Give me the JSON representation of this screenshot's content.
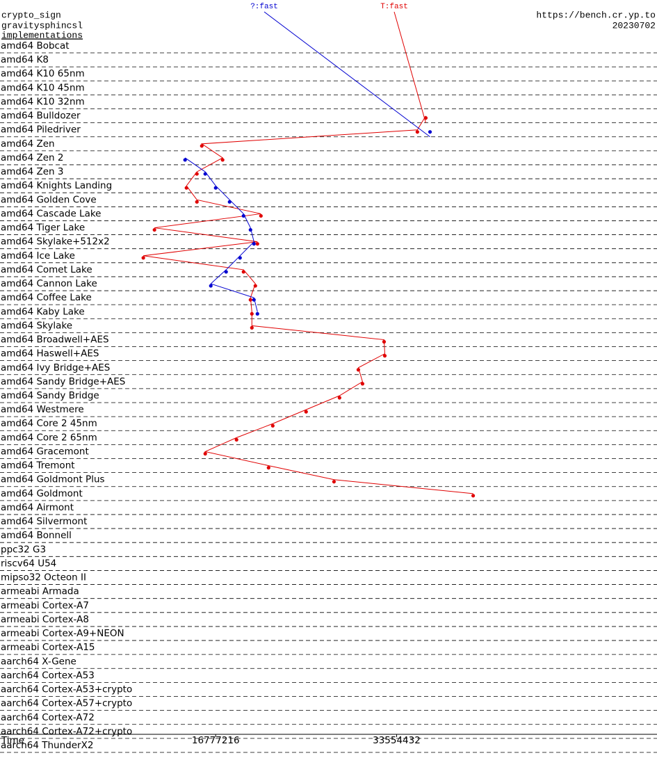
{
  "header": {
    "left": [
      "crypto_sign",
      "gravitysphincsl",
      "implementations"
    ],
    "right": [
      "https://bench.cr.yp.to",
      "20230702"
    ]
  },
  "chart_data": {
    "type": "line",
    "orientation": "horizontal",
    "x_label": "Time",
    "categories": [
      "amd64 Bobcat",
      "amd64 K8",
      "amd64 K10 65nm",
      "amd64 K10 45nm",
      "amd64 K10 32nm",
      "amd64 Bulldozer",
      "amd64 Piledriver",
      "amd64 Zen",
      "amd64 Zen 2",
      "amd64 Zen 3",
      "amd64 Knights Landing",
      "amd64 Golden Cove",
      "amd64 Cascade Lake",
      "amd64 Tiger Lake",
      "amd64 Skylake+512x2",
      "amd64 Ice Lake",
      "amd64 Comet Lake",
      "amd64 Cannon Lake",
      "amd64 Coffee Lake",
      "amd64 Kaby Lake",
      "amd64 Skylake",
      "amd64 Broadwell+AES",
      "amd64 Haswell+AES",
      "amd64 Ivy Bridge+AES",
      "amd64 Sandy Bridge+AES",
      "amd64 Sandy Bridge",
      "amd64 Westmere",
      "amd64 Core 2 45nm",
      "amd64 Core 2 65nm",
      "amd64 Gracemont",
      "amd64 Tremont",
      "amd64 Goldmont Plus",
      "amd64 Goldmont",
      "amd64 Airmont",
      "amd64 Silvermont",
      "amd64 Bonnell",
      "ppc32 G3",
      "riscv64 U54",
      "mipso32 Octeon II",
      "armeabi Armada",
      "armeabi Cortex-A7",
      "armeabi Cortex-A8",
      "armeabi Cortex-A9+NEON",
      "armeabi Cortex-A15",
      "aarch64 X-Gene",
      "aarch64 Cortex-A53",
      "aarch64 Cortex-A53+crypto",
      "aarch64 Cortex-A57+crypto",
      "aarch64 Cortex-A72",
      "aarch64 Cortex-A72+crypto",
      "aarch64 ThunderX2"
    ],
    "series": [
      {
        "name": "T:fast",
        "color": "#e00000",
        "values": [
          null,
          null,
          null,
          null,
          null,
          36260000,
          35480000,
          15490000,
          17420000,
          15035000,
          14067000,
          15035000,
          20972000,
          11099000,
          20649000,
          10066000,
          19358000,
          20455000,
          20004000,
          20133000,
          20133000,
          32393000,
          32458000,
          30006000,
          30393000,
          28260000,
          25160000,
          22070000,
          18710000,
          15809000,
          21681000,
          27747000,
          40653000,
          null,
          null,
          null,
          null,
          null,
          null,
          null,
          null,
          null,
          null,
          null,
          null,
          null,
          null,
          null,
          null,
          null,
          null
        ]
      },
      {
        "name": "?:fast",
        "color": "#0000d0",
        "values": [
          null,
          null,
          null,
          null,
          null,
          null,
          36652000,
          null,
          13938000,
          15809000,
          16777000,
          18067000,
          19358000,
          20004000,
          20326000,
          19036000,
          17745000,
          16326000,
          20326000,
          20649000,
          null,
          null,
          null,
          null,
          null,
          null,
          null,
          null,
          null,
          null,
          null,
          null,
          null,
          null,
          null,
          null,
          null,
          null,
          null,
          null,
          null,
          null,
          null,
          null,
          null,
          null,
          null,
          null,
          null,
          null,
          null
        ]
      }
    ],
    "xlim": [
      0,
      57700000
    ],
    "xticks": [
      16777216,
      33554432
    ]
  }
}
